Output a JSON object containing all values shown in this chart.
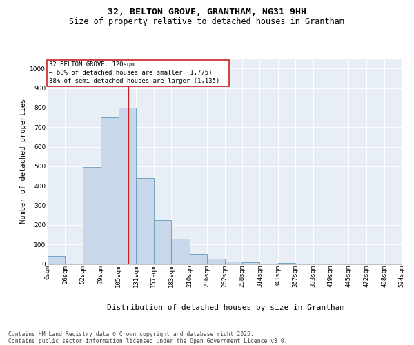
{
  "title_line1": "32, BELTON GROVE, GRANTHAM, NG31 9HH",
  "title_line2": "Size of property relative to detached houses in Grantham",
  "xlabel": "Distribution of detached houses by size in Grantham",
  "ylabel": "Number of detached properties",
  "bar_color": "#c8d8ea",
  "bar_edge_color": "#6699bb",
  "bg_color": "#e8eef5",
  "annotation_text": "32 BELTON GROVE: 120sqm\n← 60% of detached houses are smaller (1,775)\n38% of semi-detached houses are larger (1,135) →",
  "vline_x": 120,
  "vline_color": "#cc2222",
  "annotation_box_edgecolor": "#cc2222",
  "footnote": "Contains HM Land Registry data © Crown copyright and database right 2025.\nContains public sector information licensed under the Open Government Licence v3.0.",
  "bin_edges": [
    0,
    26,
    52,
    79,
    105,
    131,
    157,
    183,
    210,
    236,
    262,
    288,
    314,
    341,
    367,
    393,
    419,
    445,
    472,
    498,
    524
  ],
  "bin_labels": [
    "0sqm",
    "26sqm",
    "52sqm",
    "79sqm",
    "105sqm",
    "131sqm",
    "157sqm",
    "183sqm",
    "210sqm",
    "236sqm",
    "262sqm",
    "288sqm",
    "314sqm",
    "341sqm",
    "367sqm",
    "393sqm",
    "419sqm",
    "445sqm",
    "472sqm",
    "498sqm",
    "524sqm"
  ],
  "bar_heights": [
    40,
    0,
    495,
    750,
    800,
    440,
    225,
    130,
    50,
    25,
    12,
    8,
    0,
    5,
    0,
    0,
    0,
    0,
    0,
    0
  ],
  "ylim": [
    0,
    1050
  ],
  "yticks": [
    0,
    100,
    200,
    300,
    400,
    500,
    600,
    700,
    800,
    900,
    1000
  ],
  "title1_fontsize": 9.5,
  "title2_fontsize": 8.5,
  "ylabel_fontsize": 7.5,
  "xlabel_fontsize": 8.0,
  "tick_fontsize": 6.5,
  "footnote_fontsize": 5.8,
  "annot_fontsize": 6.5
}
